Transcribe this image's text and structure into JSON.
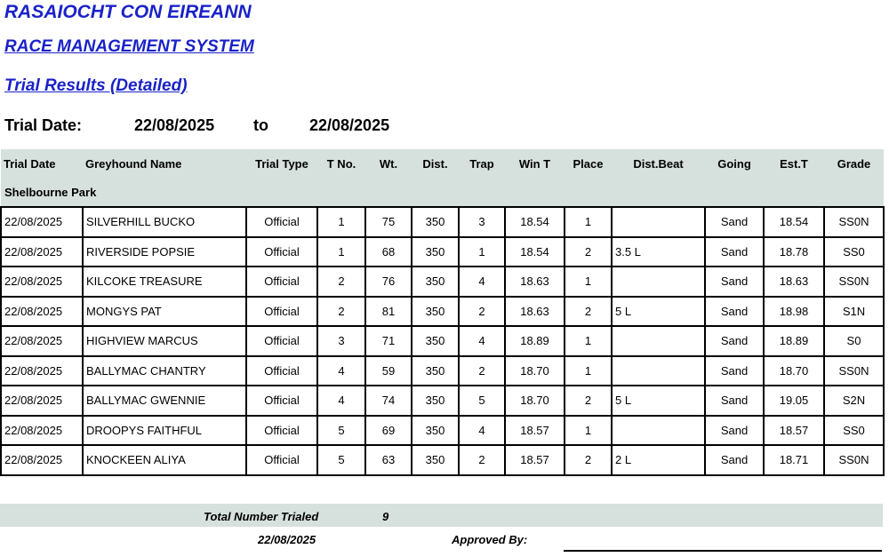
{
  "header": {
    "org": "RASAIOCHT CON EIREANN",
    "system": "RACE MANAGEMENT SYSTEM",
    "report": "Trial Results (Detailed)"
  },
  "date_range": {
    "label": "Trial Date:",
    "from": "22/08/2025",
    "to_label": "to",
    "to": "22/08/2025"
  },
  "table": {
    "columns": [
      "Trial Date",
      "Greyhound Name",
      "Trial Type",
      "T No.",
      "Wt.",
      "Dist.",
      "Trap",
      "Win T",
      "Place",
      "Dist.Beat",
      "Going",
      "Est.T",
      "Grade"
    ],
    "section": "Shelbourne Park",
    "rows": [
      [
        "22/08/2025",
        "SILVERHILL BUCKO",
        "Official",
        "1",
        "75",
        "350",
        "3",
        "18.54",
        "1",
        "",
        "Sand",
        "18.54",
        "SS0N"
      ],
      [
        "22/08/2025",
        "RIVERSIDE POPSIE",
        "Official",
        "1",
        "68",
        "350",
        "1",
        "18.54",
        "2",
        "3.5 L",
        "Sand",
        "18.78",
        "SS0"
      ],
      [
        "22/08/2025",
        "KILCOKE TREASURE",
        "Official",
        "2",
        "76",
        "350",
        "4",
        "18.63",
        "1",
        "",
        "Sand",
        "18.63",
        "SS0N"
      ],
      [
        "22/08/2025",
        "MONGYS PAT",
        "Official",
        "2",
        "81",
        "350",
        "2",
        "18.63",
        "2",
        "5 L",
        "Sand",
        "18.98",
        "S1N"
      ],
      [
        "22/08/2025",
        "HIGHVIEW MARCUS",
        "Official",
        "3",
        "71",
        "350",
        "4",
        "18.89",
        "1",
        "",
        "Sand",
        "18.89",
        "S0"
      ],
      [
        "22/08/2025",
        "BALLYMAC CHANTRY",
        "Official",
        "4",
        "59",
        "350",
        "2",
        "18.70",
        "1",
        "",
        "Sand",
        "18.70",
        "SS0N"
      ],
      [
        "22/08/2025",
        "BALLYMAC GWENNIE",
        "Official",
        "4",
        "74",
        "350",
        "5",
        "18.70",
        "2",
        "5 L",
        "Sand",
        "19.05",
        "S2N"
      ],
      [
        "22/08/2025",
        "DROOPYS FAITHFUL",
        "Official",
        "5",
        "69",
        "350",
        "4",
        "18.57",
        "1",
        "",
        "Sand",
        "18.57",
        "SS0"
      ],
      [
        "22/08/2025",
        "KNOCKEEN ALIYA",
        "Official",
        "5",
        "63",
        "350",
        "2",
        "18.57",
        "2",
        "2 L",
        "Sand",
        "18.71",
        "SS0N"
      ]
    ]
  },
  "footer": {
    "total_label": "Total Number Trialed",
    "total": "9",
    "date": "22/08/2025",
    "approved_label": "Approved By:"
  }
}
